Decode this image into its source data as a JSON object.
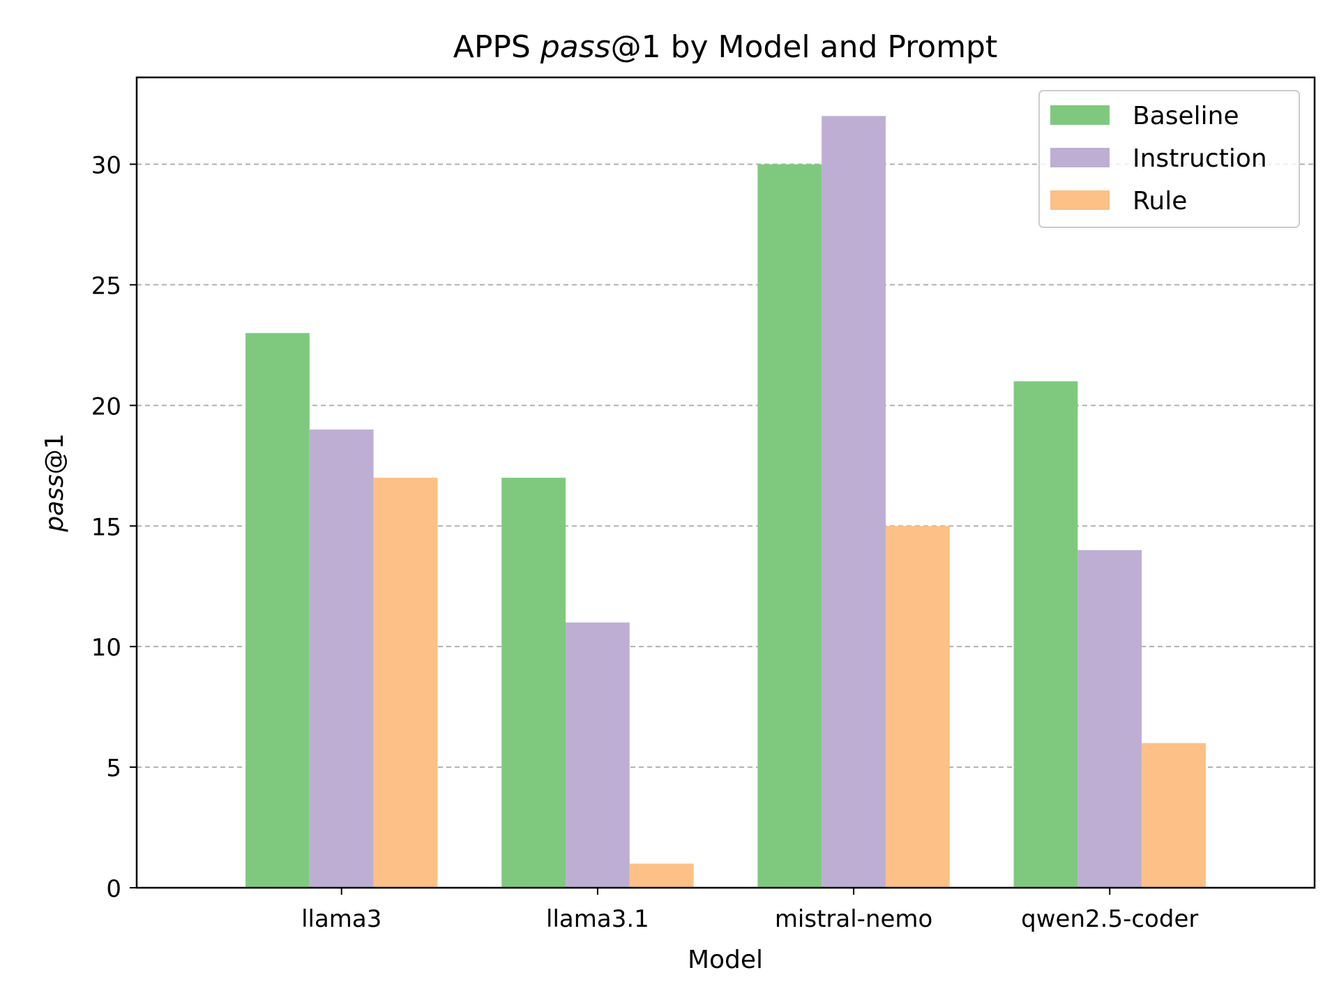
{
  "chart_data": {
    "type": "bar",
    "title_prefix": "APPS ",
    "title_italic": "pass",
    "title_suffix": "@1 by Model and Prompt",
    "xlabel": "Model",
    "ylabel_italic": "pass",
    "ylabel_suffix": "@1",
    "categories": [
      "llama3",
      "llama3.1",
      "mistral-nemo",
      "qwen2.5-coder"
    ],
    "series": [
      {
        "name": "Baseline",
        "color": "#7fc97f",
        "values": [
          23,
          17,
          30,
          21
        ]
      },
      {
        "name": "Instruction",
        "color": "#beaed4",
        "values": [
          19,
          11,
          32,
          14
        ]
      },
      {
        "name": "Rule",
        "color": "#fdc086",
        "values": [
          17,
          1,
          15,
          6
        ]
      }
    ],
    "ylim": [
      0,
      33.6
    ],
    "yticks": [
      0,
      5,
      10,
      15,
      20,
      25,
      30
    ],
    "grid": "horizontal-dashed",
    "legend_position": "top-right"
  }
}
